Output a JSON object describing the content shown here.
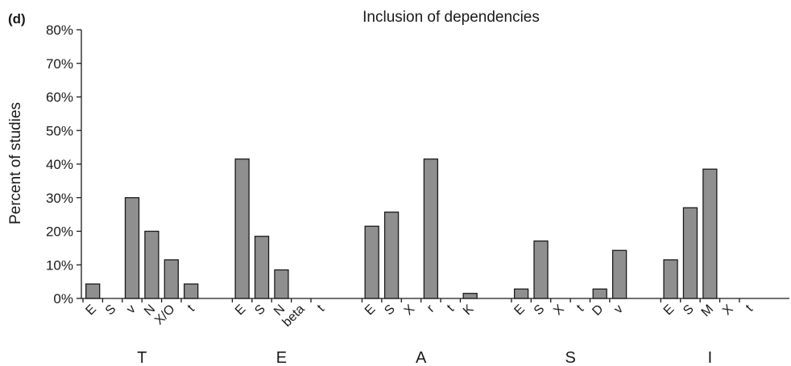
{
  "chart_data": {
    "type": "bar",
    "panel_label": "(d)",
    "title": "Inclusion of dependencies",
    "ylabel": "Percent of studies",
    "ylim": [
      0,
      80
    ],
    "yticks": [
      0,
      10,
      20,
      30,
      40,
      50,
      60,
      70,
      80
    ],
    "ytick_labels": [
      "0%",
      "10%",
      "20%",
      "30%",
      "40%",
      "50%",
      "60%",
      "70%",
      "80%"
    ],
    "grid": false,
    "groups": [
      {
        "name": "T",
        "categories": [
          "E",
          "S",
          "v",
          "N",
          "X/O",
          "t"
        ],
        "values": [
          4.3,
          0,
          30,
          20,
          11.5,
          4.3
        ]
      },
      {
        "name": "E",
        "categories": [
          "E",
          "S",
          "N",
          "beta",
          "t"
        ],
        "values": [
          41.5,
          18.5,
          8.5,
          0,
          0
        ]
      },
      {
        "name": "A",
        "categories": [
          "E",
          "S",
          "X",
          "r",
          "t",
          "K"
        ],
        "values": [
          21.5,
          25.7,
          0,
          41.5,
          0,
          1.5
        ]
      },
      {
        "name": "S",
        "categories": [
          "E",
          "S",
          "X",
          "t",
          "D",
          "v"
        ],
        "values": [
          2.8,
          17.1,
          0,
          0,
          2.8,
          14.3
        ]
      },
      {
        "name": "I",
        "categories": [
          "E",
          "S",
          "M",
          "X",
          "t"
        ],
        "values": [
          11.5,
          27,
          38.5,
          0,
          0
        ]
      }
    ]
  }
}
